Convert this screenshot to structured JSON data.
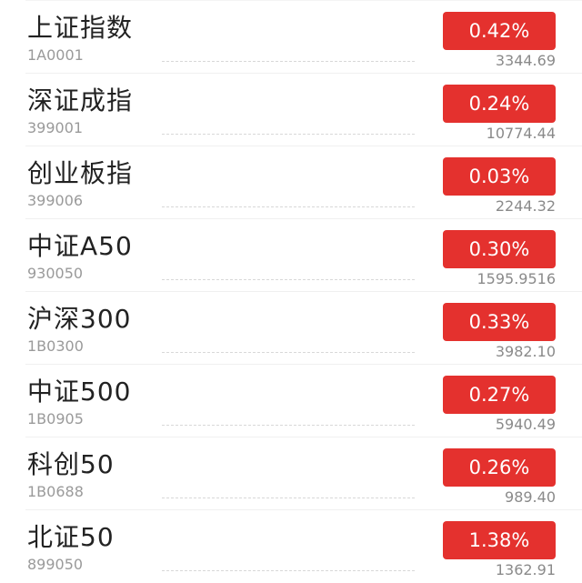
{
  "accent_color": "#e4312e",
  "indices": [
    {
      "name": "上证指数",
      "code": "1A0001",
      "change": "0.42%",
      "value": "3344.69"
    },
    {
      "name": "深证成指",
      "code": "399001",
      "change": "0.24%",
      "value": "10774.44"
    },
    {
      "name": "创业板指",
      "code": "399006",
      "change": "0.03%",
      "value": "2244.32"
    },
    {
      "name": "中证A50",
      "code": "930050",
      "change": "0.30%",
      "value": "1595.9516"
    },
    {
      "name": "沪深300",
      "code": "1B0300",
      "change": "0.33%",
      "value": "3982.10"
    },
    {
      "name": "中证500",
      "code": "1B0905",
      "change": "0.27%",
      "value": "5940.49"
    },
    {
      "name": "科创50",
      "code": "1B0688",
      "change": "0.26%",
      "value": "989.40"
    },
    {
      "name": "北证50",
      "code": "899050",
      "change": "1.38%",
      "value": "1362.91"
    }
  ]
}
